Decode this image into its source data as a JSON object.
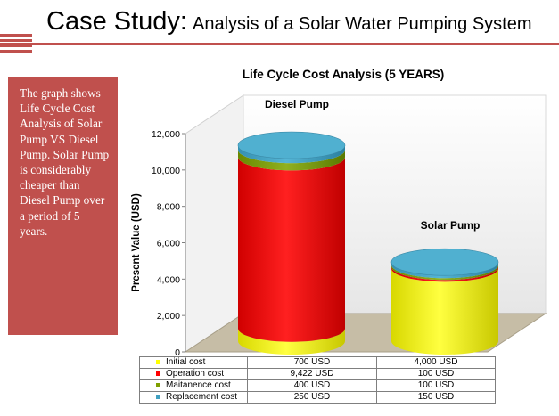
{
  "slide": {
    "title_main": "Case Study:",
    "title_sub": "Analysis of a Solar Water Pumping System",
    "sidebar_text": "The graph shows Life Cycle Cost Analysis of Solar Pump VS Diesel Pump. Solar Pump is considerably cheaper than Diesel Pump over a period of  5 years."
  },
  "colors": {
    "accent": "#c0504d",
    "initial": "#ffff00",
    "operation": "#ff0000",
    "maintenance": "#7f9f00",
    "replacement": "#40a0c0"
  },
  "chart_data": {
    "type": "bar",
    "title": "Life Cycle Cost Analysis  (5 YEARS)",
    "ylabel": "Present Value (USD)",
    "ylim": [
      0,
      12000
    ],
    "yticks": [
      "0",
      "2,000",
      "4,000",
      "6,000",
      "8,000",
      "10,000",
      "12,000"
    ],
    "categories": [
      "Diesel Pump",
      "Solar Pump"
    ],
    "series": [
      {
        "name": "Initial cost",
        "values": [
          700,
          4000
        ],
        "labels": [
          "700 USD",
          "4,000 USD"
        ]
      },
      {
        "name": "Operation cost",
        "values": [
          9422,
          100
        ],
        "labels": [
          "9,422 USD",
          "100 USD"
        ]
      },
      {
        "name": "Maitanence cost",
        "values": [
          400,
          100
        ],
        "labels": [
          "400 USD",
          "100 USD"
        ]
      },
      {
        "name": "Replacement cost",
        "values": [
          250,
          150
        ],
        "labels": [
          "250 USD",
          "150 USD"
        ]
      }
    ]
  }
}
